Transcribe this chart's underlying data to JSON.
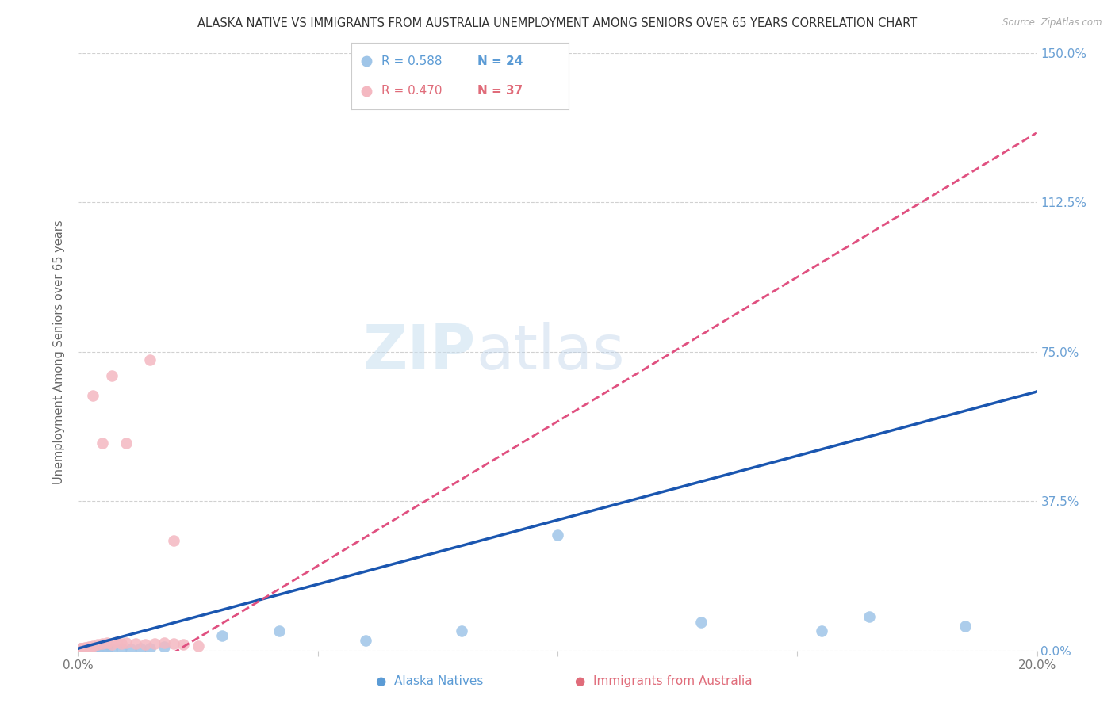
{
  "title": "ALASKA NATIVE VS IMMIGRANTS FROM AUSTRALIA UNEMPLOYMENT AMONG SENIORS OVER 65 YEARS CORRELATION CHART",
  "source": "Source: ZipAtlas.com",
  "ylabel": "Unemployment Among Seniors over 65 years",
  "watermark_zip": "ZIP",
  "watermark_atlas": "atlas",
  "alaska_R": 0.588,
  "alaska_N": 24,
  "australia_R": 0.47,
  "australia_N": 37,
  "alaska_scatter_color": "#9fc5e8",
  "australia_scatter_color": "#f4b8c1",
  "alaska_line_color": "#1a56b0",
  "australia_line_color": "#e05080",
  "right_axis_labels": [
    "0.0%",
    "37.5%",
    "75.0%",
    "112.5%",
    "150.0%"
  ],
  "right_axis_color": "#6aa0d4",
  "xmax": 0.2,
  "ymax": 1.5,
  "yticks": [
    0.0,
    0.375,
    0.75,
    1.125,
    1.5
  ],
  "xticks": [
    0.0,
    0.05,
    0.1,
    0.15,
    0.2
  ],
  "grid_color": "#cccccc",
  "bg_color": "#ffffff",
  "alaska_label": "Alaska Natives",
  "australia_label": "Immigrants from Australia",
  "alaska_legend_color": "#5b9bd5",
  "australia_legend_color": "#e06c7a",
  "an_x": [
    0.0003,
    0.0005,
    0.001,
    0.0015,
    0.002,
    0.003,
    0.004,
    0.005,
    0.006,
    0.007,
    0.009,
    0.011,
    0.013,
    0.015,
    0.018,
    0.03,
    0.042,
    0.06,
    0.08,
    0.1,
    0.13,
    0.155,
    0.165,
    0.185
  ],
  "an_y": [
    0.001,
    0.002,
    0.001,
    0.003,
    0.002,
    0.003,
    0.004,
    0.002,
    0.003,
    0.004,
    0.005,
    0.003,
    0.006,
    0.005,
    0.01,
    0.038,
    0.05,
    0.025,
    0.05,
    0.29,
    0.07,
    0.05,
    0.085,
    0.06
  ],
  "ia_x": [
    0.0001,
    0.0002,
    0.0003,
    0.0004,
    0.0005,
    0.0006,
    0.0007,
    0.0008,
    0.001,
    0.0012,
    0.0014,
    0.0016,
    0.0018,
    0.002,
    0.0022,
    0.0025,
    0.003,
    0.004,
    0.005,
    0.006,
    0.007,
    0.008,
    0.009,
    0.01,
    0.012,
    0.014,
    0.016,
    0.018,
    0.02,
    0.022,
    0.025,
    0.003,
    0.005,
    0.007,
    0.01,
    0.015,
    0.02
  ],
  "ia_y": [
    0.003,
    0.004,
    0.003,
    0.005,
    0.004,
    0.005,
    0.004,
    0.006,
    0.006,
    0.005,
    0.007,
    0.006,
    0.008,
    0.007,
    0.009,
    0.01,
    0.012,
    0.015,
    0.018,
    0.02,
    0.016,
    0.022,
    0.018,
    0.02,
    0.018,
    0.016,
    0.018,
    0.02,
    0.018,
    0.015,
    0.012,
    0.64,
    0.52,
    0.69,
    0.52,
    0.73,
    0.275
  ]
}
